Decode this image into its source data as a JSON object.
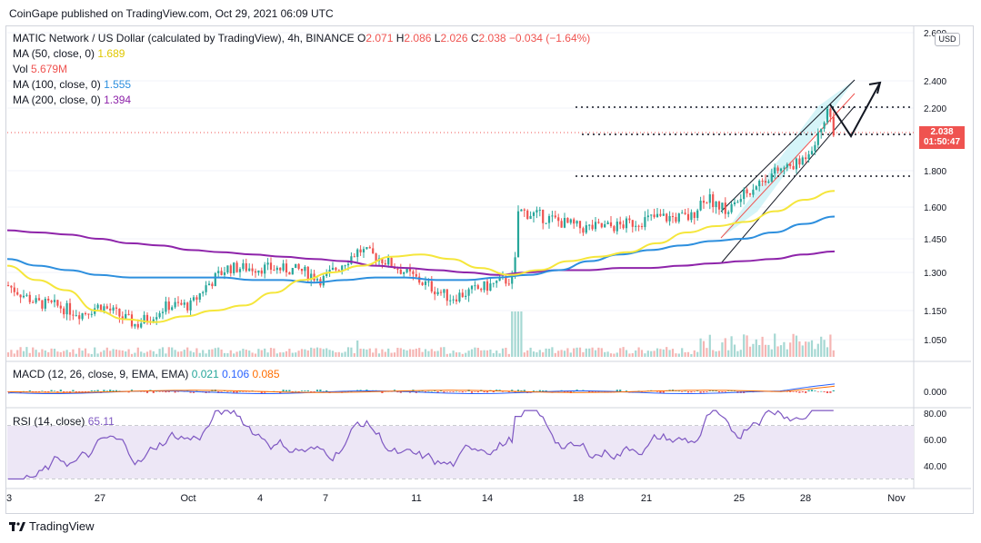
{
  "publisher_line": "CoinGape published on TradingView.com, Oct 29, 2021 06:09 UTC",
  "legend": {
    "symbol": "MATIC Network / US Dollar (calculated by TradingView), 4h, BINANCE",
    "open_label": "O",
    "open": "2.071",
    "high_label": "H",
    "high": "2.086",
    "low_label": "L",
    "low": "2.026",
    "close_label": "C",
    "close": "2.038",
    "change": "−0.034 (−1.64%)",
    "ma50_label": "MA (50, close, 0)",
    "ma50_value": "1.689",
    "vol_label": "Vol",
    "vol_value": "5.679M",
    "ma100_label": "MA (100, close, 0)",
    "ma100_value": "1.555",
    "ma200_label": "MA (200, close, 0)",
    "ma200_value": "1.394"
  },
  "currency_badge": "USD",
  "last_price_tag": {
    "price": "2.038",
    "countdown": "01:50:47"
  },
  "macd": {
    "label": "MACD (12, 26, close, 9, EMA, EMA)",
    "v1": "0.021",
    "v2": "0.106",
    "v3": "0.085"
  },
  "rsi": {
    "label": "RSI (14, close)",
    "value": "65.11"
  },
  "footer_brand": "TradingView",
  "colors": {
    "up": "#26a69a",
    "down": "#ef5350",
    "ma50": "#f5e63b",
    "ma100": "#2d8fde",
    "ma200": "#8e24aa",
    "rsi": "#7e57c2",
    "rsi_band": "#ede7f6",
    "channel": "#b2ebf2",
    "accent": "#2962ff"
  },
  "chart_data": {
    "type": "candlestick",
    "title": "MATIC Network / US Dollar, 4h, BINANCE",
    "x_ticks": [
      "3",
      "27",
      "Oct",
      "4",
      "7",
      "11",
      "14",
      "18",
      "21",
      "25",
      "28",
      "Nov"
    ],
    "price_axis_ticks": [
      "2.600",
      "2.400",
      "2.200",
      "1.800",
      "1.600",
      "1.450",
      "1.300",
      "1.150",
      "1.050"
    ],
    "macd_axis_ticks": [
      "0.000"
    ],
    "rsi_axis_ticks": [
      "80.00",
      "60.00",
      "40.00"
    ],
    "last_close": 2.038,
    "horizontal_levels": [
      2.21,
      2.03,
      1.77
    ],
    "ma50_approx": [
      1.33,
      1.27,
      1.23,
      1.15,
      1.12,
      1.11,
      1.13,
      1.15,
      1.17,
      1.22,
      1.27,
      1.3,
      1.33,
      1.37,
      1.38,
      1.36,
      1.32,
      1.29,
      1.31,
      1.35,
      1.37,
      1.39,
      1.43,
      1.48,
      1.51,
      1.53,
      1.58,
      1.64,
      1.689
    ],
    "ma100_approx": [
      1.36,
      1.33,
      1.31,
      1.29,
      1.28,
      1.28,
      1.28,
      1.28,
      1.27,
      1.27,
      1.26,
      1.27,
      1.28,
      1.28,
      1.27,
      1.27,
      1.28,
      1.29,
      1.31,
      1.35,
      1.38,
      1.4,
      1.42,
      1.44,
      1.45,
      1.48,
      1.52,
      1.555
    ],
    "ma200_approx": [
      1.49,
      1.48,
      1.47,
      1.45,
      1.43,
      1.42,
      1.4,
      1.39,
      1.38,
      1.37,
      1.36,
      1.35,
      1.33,
      1.32,
      1.31,
      1.3,
      1.29,
      1.3,
      1.31,
      1.31,
      1.32,
      1.32,
      1.33,
      1.34,
      1.35,
      1.36,
      1.38,
      1.394
    ]
  }
}
